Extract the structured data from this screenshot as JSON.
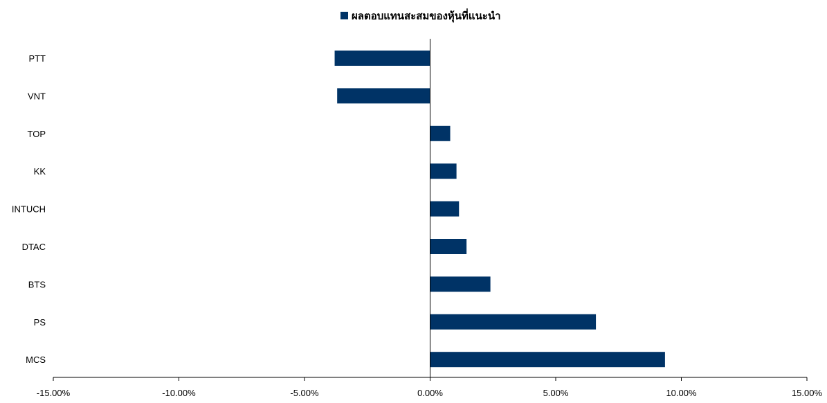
{
  "chart_data": {
    "type": "bar",
    "orientation": "horizontal",
    "legend_position": "top-center",
    "grid": false,
    "series": [
      {
        "name": "ผลตอบแทนสะสมของหุ้นที่แนะนำ",
        "color": "#003366",
        "categories": [
          "PTT",
          "VNT",
          "TOP",
          "KK",
          "INTUCH",
          "DTAC",
          "BTS",
          "PS",
          "MCS"
        ],
        "values": [
          -3.8,
          -3.7,
          0.8,
          1.05,
          1.15,
          1.45,
          2.4,
          6.6,
          9.35
        ]
      }
    ],
    "xlim": [
      -15,
      15
    ],
    "xticks": [
      -15,
      -10,
      -5,
      0,
      5,
      10,
      15
    ],
    "xtick_labels": [
      "-15.00%",
      "-10.00%",
      "-5.00%",
      "0.00%",
      "5.00%",
      "10.00%",
      "15.00%"
    ],
    "title": "",
    "xlabel": "",
    "ylabel": ""
  }
}
